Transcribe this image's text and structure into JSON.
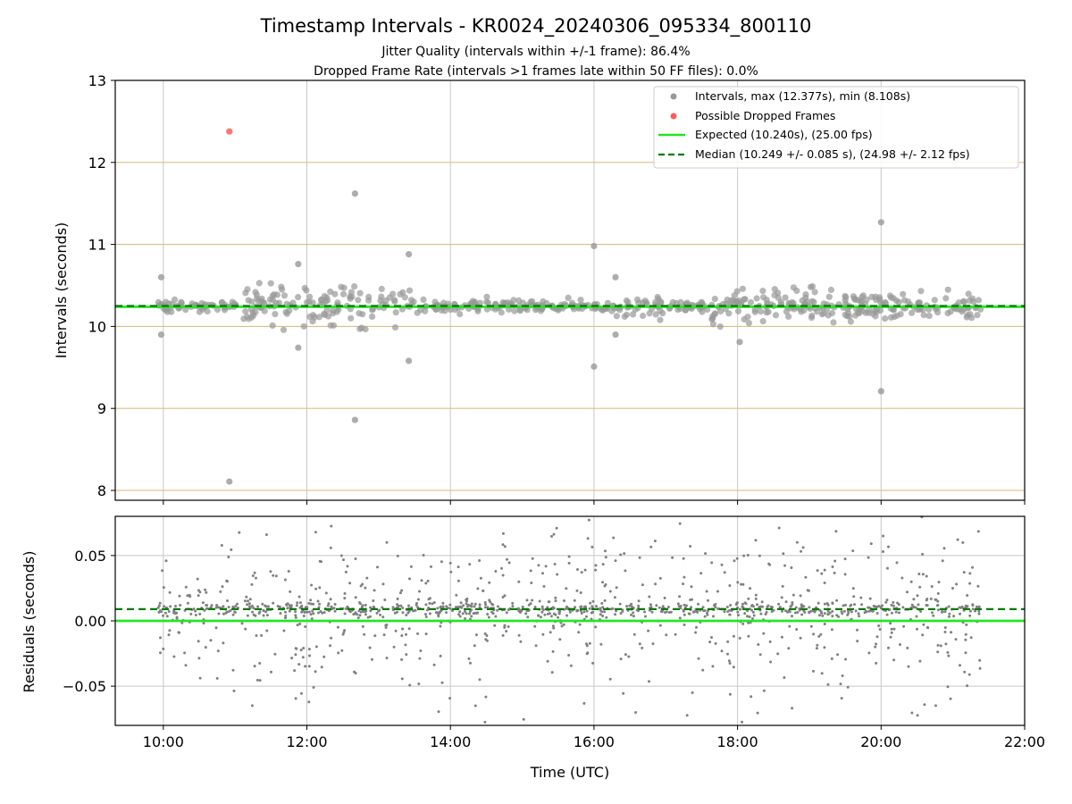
{
  "chart_data": {
    "type": "scatter",
    "title": "Timestamp Intervals - KR0024_20240306_095334_800110",
    "subtitles": [
      "Jitter Quality (intervals within +/-1 frame): 86.4%",
      "Dropped Frame Rate (intervals >1 frames late within 50 FF files): 0.0%"
    ],
    "xlabel": "Time (UTC)",
    "x_ticks": [
      "10:00",
      "12:00",
      "14:00",
      "16:00",
      "18:00",
      "20:00",
      "22:00"
    ],
    "x_range_hours": [
      9.33,
      22.0
    ],
    "data_span_hours": [
      9.93,
      21.4
    ],
    "top": {
      "ylabel": "Intervals (seconds)",
      "ylim": [
        7.88,
        13.0
      ],
      "y_ticks": [
        "8",
        "9",
        "10",
        "11",
        "12",
        "13"
      ],
      "y_tick_values": [
        8,
        9,
        10,
        11,
        12,
        13
      ],
      "frame_lines": [
        8.0,
        9.0,
        10.0,
        11.0,
        12.0
      ],
      "expected": 10.24,
      "median": 10.249,
      "dropped_frames": [
        {
          "x": 10.92,
          "y": 12.377
        }
      ],
      "outliers": [
        {
          "x": 10.92,
          "y": 8.108
        },
        {
          "x": 12.67,
          "y": 11.62
        },
        {
          "x": 12.67,
          "y": 8.86
        },
        {
          "x": 13.42,
          "y": 10.88
        },
        {
          "x": 13.42,
          "y": 9.58
        },
        {
          "x": 16.0,
          "y": 10.98
        },
        {
          "x": 16.0,
          "y": 9.51
        },
        {
          "x": 20.0,
          "y": 11.27
        },
        {
          "x": 20.0,
          "y": 9.21
        },
        {
          "x": 9.97,
          "y": 10.6
        },
        {
          "x": 9.97,
          "y": 9.9
        },
        {
          "x": 11.88,
          "y": 10.76
        },
        {
          "x": 11.88,
          "y": 9.74
        },
        {
          "x": 18.03,
          "y": 9.81
        },
        {
          "x": 16.3,
          "y": 10.6
        },
        {
          "x": 16.3,
          "y": 9.9
        }
      ],
      "legend": [
        {
          "label": "Intervals, max (12.377s), min (8.108s)",
          "color": "#999999",
          "kind": "marker"
        },
        {
          "label": "Possible Dropped Frames",
          "color": "#ff5c5c",
          "kind": "marker"
        },
        {
          "label": "Expected (10.240s), (25.00 fps)",
          "color": "#22e622",
          "kind": "line"
        },
        {
          "label": "Median (10.249 +/- 0.085 s), (24.98 +/- 2.12 fps)",
          "color": "#007a00",
          "kind": "dashed"
        }
      ]
    },
    "bottom": {
      "ylabel": "Residuals (seconds)",
      "ylim": [
        -0.08,
        0.08
      ],
      "y_ticks": [
        "0.05",
        "0.00",
        "−0.05"
      ],
      "y_tick_values": [
        0.05,
        0.0,
        -0.05
      ],
      "expected": 0.0,
      "median": 0.009
    },
    "colors": {
      "points": "#999999",
      "residual_points": "#808080",
      "dropped": "#ff5c5c",
      "expected": "#22e622",
      "median": "#007a00",
      "hgrid": "#d9c08a",
      "grid": "#c8c8c8"
    }
  }
}
